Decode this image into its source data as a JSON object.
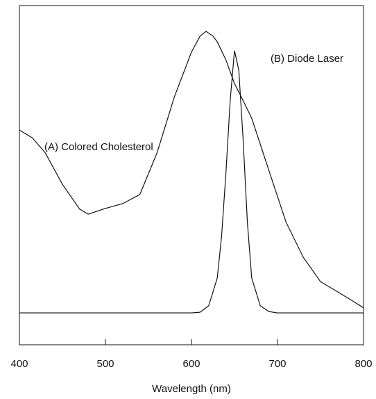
{
  "chart_data": {
    "type": "line",
    "xlabel": "Wavelength (nm)",
    "xlim": [
      400,
      800
    ],
    "xticks": [
      400,
      500,
      600,
      700,
      800
    ],
    "ylim": [
      0,
      1
    ],
    "series": [
      {
        "name": "(A) Colored Cholesterol",
        "color": "#111111",
        "x": [
          400,
          415,
          430,
          450,
          470,
          480,
          500,
          520,
          540,
          560,
          580,
          600,
          610,
          617,
          625,
          630,
          640,
          650,
          660,
          670,
          690,
          710,
          730,
          750,
          770,
          790,
          800
        ],
        "values": [
          0.633,
          0.61,
          0.566,
          0.473,
          0.4,
          0.385,
          0.402,
          0.416,
          0.443,
          0.566,
          0.73,
          0.863,
          0.91,
          0.924,
          0.91,
          0.893,
          0.84,
          0.77,
          0.72,
          0.668,
          0.514,
          0.361,
          0.258,
          0.186,
          0.156,
          0.125,
          0.109
        ]
      },
      {
        "name": "(B) Diode Laser",
        "color": "#111111",
        "x": [
          400,
          500,
          600,
          610,
          620,
          630,
          635,
          640,
          645,
          650,
          655,
          660,
          665,
          670,
          680,
          690,
          700,
          800
        ],
        "values": [
          0.094,
          0.094,
          0.094,
          0.096,
          0.115,
          0.197,
          0.32,
          0.504,
          0.72,
          0.867,
          0.81,
          0.607,
          0.361,
          0.197,
          0.115,
          0.098,
          0.094,
          0.094
        ]
      }
    ]
  }
}
